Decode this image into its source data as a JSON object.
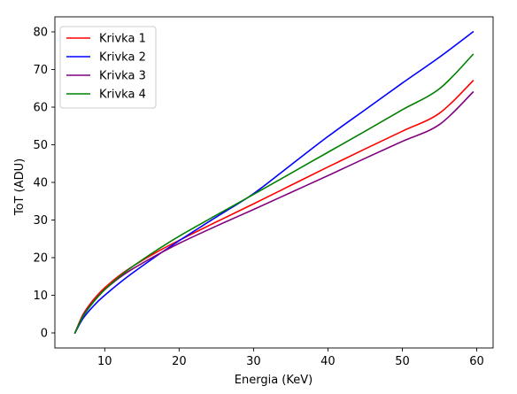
{
  "chart_data": {
    "type": "line",
    "title": "",
    "xlabel": "Energia (KeV)",
    "ylabel": "ToT (ADU)",
    "xlim": [
      3.3,
      62.2
    ],
    "ylim": [
      -4,
      84
    ],
    "xticks": [
      10,
      20,
      30,
      40,
      50,
      60
    ],
    "yticks": [
      0,
      10,
      20,
      30,
      40,
      50,
      60,
      70,
      80
    ],
    "grid": false,
    "legend_position": "top-left",
    "series": [
      {
        "name": "Krivka 1",
        "color": "#ff0000",
        "x": [
          6,
          7,
          8,
          9,
          10,
          12,
          14,
          17,
          20,
          25,
          30,
          35,
          40,
          45,
          50,
          55,
          59.5
        ],
        "y": [
          0,
          4.6,
          7.6,
          10.0,
          12.0,
          15.3,
          18.0,
          21.5,
          24.6,
          29.5,
          34.3,
          39.2,
          44.1,
          48.9,
          53.6,
          58.4,
          67
        ]
      },
      {
        "name": "Krivka 2",
        "color": "#0000ff",
        "x": [
          6,
          7,
          8,
          9,
          10,
          12,
          14,
          17,
          20,
          25,
          30,
          35,
          40,
          45,
          50,
          55,
          59.5
        ],
        "y": [
          0,
          3.6,
          6.1,
          8.2,
          10.0,
          13.3,
          16.3,
          20.5,
          24.5,
          30.8,
          37.0,
          44.6,
          52.2,
          59.3,
          66.4,
          73.3,
          80
        ]
      },
      {
        "name": "Krivka 3",
        "color": "#800080",
        "x": [
          6,
          7,
          8,
          9,
          10,
          12,
          14,
          17,
          20,
          25,
          30,
          35,
          40,
          45,
          50,
          55,
          59.5
        ],
        "y": [
          0,
          4.3,
          7.2,
          9.5,
          11.5,
          14.7,
          17.3,
          20.7,
          23.8,
          28.4,
          32.8,
          37.3,
          41.8,
          46.4,
          50.9,
          55.4,
          64
        ]
      },
      {
        "name": "Krivka 4",
        "color": "#008000",
        "x": [
          6,
          7,
          8,
          9,
          10,
          12,
          14,
          17,
          20,
          25,
          30,
          35,
          40,
          45,
          50,
          55,
          59.5
        ],
        "y": [
          0,
          4.1,
          7.0,
          9.4,
          11.5,
          15.0,
          18.0,
          22.0,
          25.7,
          31.3,
          36.8,
          42.4,
          48.0,
          53.6,
          59.3,
          64.9,
          74
        ]
      }
    ]
  }
}
